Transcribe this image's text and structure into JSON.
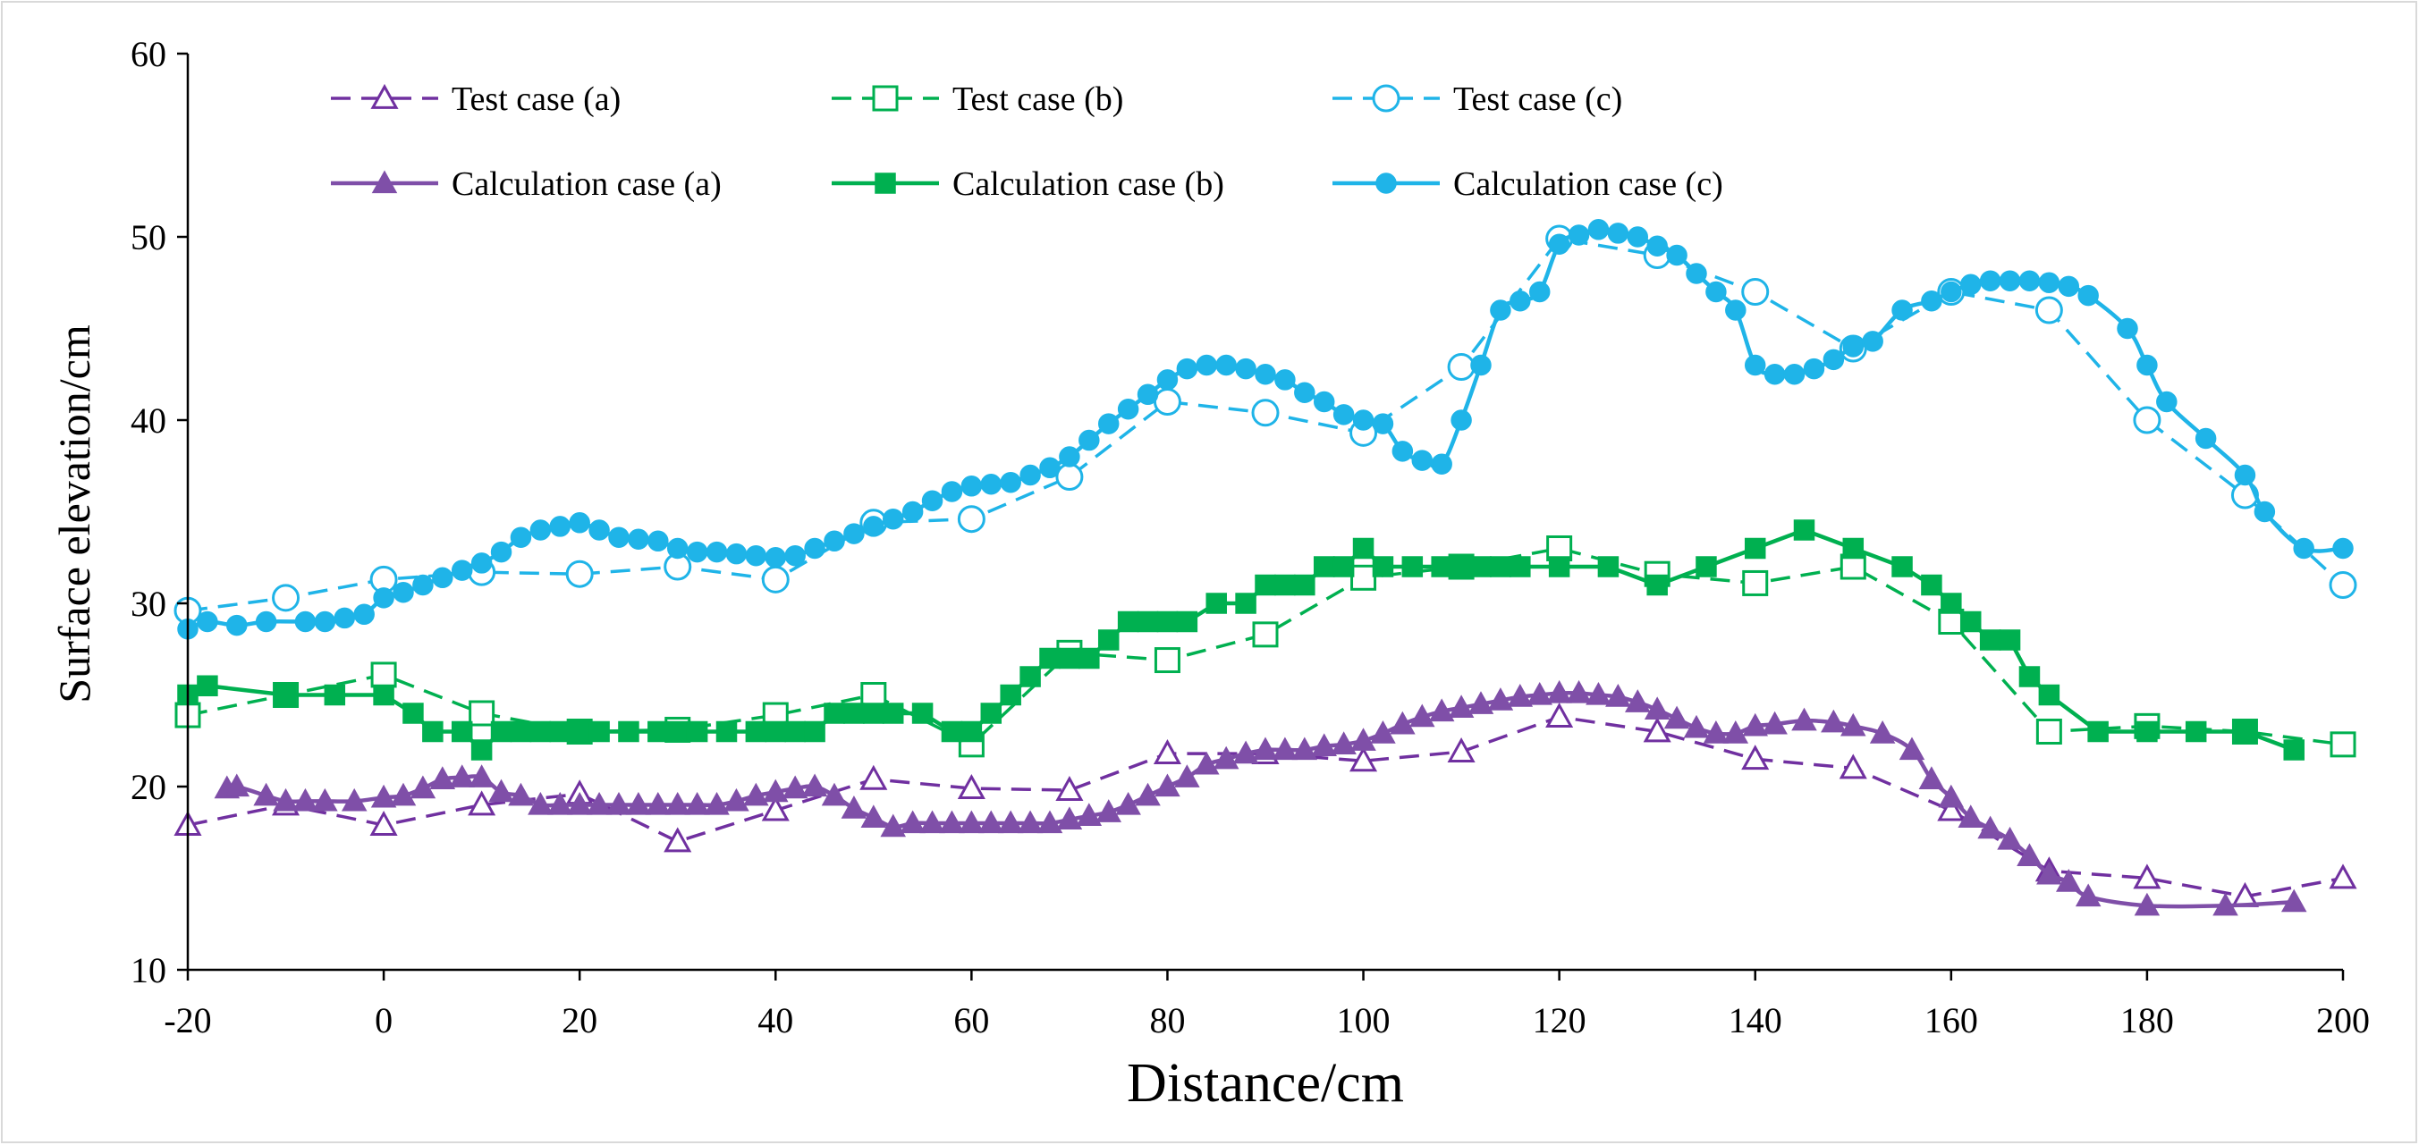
{
  "chart_data": {
    "type": "line",
    "title": "",
    "xlabel": "Distance/cm",
    "ylabel": "Surface elevation/cm",
    "xlim": [
      -20,
      200
    ],
    "ylim": [
      10,
      60
    ],
    "xticks": [
      -20,
      0,
      20,
      40,
      60,
      80,
      100,
      120,
      140,
      160,
      180,
      200
    ],
    "yticks": [
      10,
      20,
      30,
      40,
      50,
      60
    ],
    "grid": false,
    "legend_position": "top",
    "series": [
      {
        "name": "Test case (a)",
        "kind": "test",
        "color": "#7030a0",
        "marker": "triangle-open",
        "dashed": true,
        "smooth": false,
        "x": [
          -20,
          -10,
          0,
          10,
          20,
          30,
          40,
          50,
          60,
          70,
          80,
          90,
          100,
          110,
          120,
          130,
          140,
          150,
          160,
          170,
          180,
          190,
          200
        ],
        "y": [
          17.9,
          19.0,
          17.9,
          19.0,
          19.6,
          17.0,
          18.7,
          20.4,
          19.9,
          19.8,
          21.8,
          21.8,
          21.4,
          21.9,
          23.8,
          23.0,
          21.5,
          21.0,
          18.7,
          15.4,
          15.0,
          14.0,
          15.0
        ]
      },
      {
        "name": "Test case (b)",
        "kind": "test",
        "color": "#00b050",
        "marker": "square-open",
        "dashed": true,
        "smooth": false,
        "x": [
          -20,
          -10,
          0,
          10,
          20,
          30,
          40,
          50,
          60,
          70,
          80,
          90,
          100,
          110,
          120,
          130,
          140,
          150,
          160,
          170,
          180,
          190,
          200
        ],
        "y": [
          23.9,
          25.0,
          26.1,
          24.0,
          23.0,
          23.1,
          23.9,
          25.0,
          22.3,
          27.3,
          26.9,
          28.3,
          31.4,
          32.0,
          33.0,
          31.6,
          31.1,
          32.0,
          29.0,
          23.0,
          23.3,
          23.0,
          22.3
        ]
      },
      {
        "name": "Test case (c)",
        "kind": "test",
        "color": "#1fb4e8",
        "marker": "circle-open",
        "dashed": true,
        "smooth": false,
        "x": [
          -20,
          -10,
          0,
          10,
          20,
          30,
          40,
          50,
          60,
          70,
          80,
          90,
          100,
          110,
          120,
          130,
          140,
          150,
          160,
          170,
          180,
          190,
          200
        ],
        "y": [
          29.6,
          30.3,
          31.3,
          31.7,
          31.6,
          32.0,
          31.3,
          34.4,
          34.6,
          36.9,
          41.0,
          40.4,
          39.3,
          42.9,
          49.9,
          49.0,
          47.0,
          43.9,
          47.0,
          46.0,
          40.0,
          35.9,
          31.0
        ]
      },
      {
        "name": "Calculation case (a)",
        "kind": "calc",
        "color": "#7f4fa8",
        "marker": "triangle-filled",
        "dashed": false,
        "smooth": true,
        "x": [
          -16,
          -15,
          -12,
          -10,
          -8,
          -6,
          -3,
          0,
          2,
          4,
          6,
          8,
          10,
          12,
          14,
          16,
          18,
          20,
          22,
          24,
          26,
          28,
          30,
          32,
          34,
          36,
          38,
          40,
          42,
          44,
          46,
          48,
          50,
          52,
          54,
          56,
          58,
          60,
          62,
          64,
          66,
          68,
          70,
          72,
          74,
          76,
          78,
          80,
          82,
          84,
          86,
          88,
          90,
          92,
          94,
          96,
          98,
          100,
          102,
          104,
          106,
          108,
          110,
          112,
          114,
          116,
          118,
          120,
          122,
          124,
          126,
          128,
          130,
          132,
          134,
          136,
          138,
          140,
          142,
          145,
          148,
          150,
          153,
          156,
          158,
          160,
          162,
          164,
          166,
          168,
          170,
          172,
          174,
          180,
          188,
          195
        ],
        "y": [
          19.9,
          20.0,
          19.5,
          19.2,
          19.2,
          19.2,
          19.2,
          19.4,
          19.5,
          19.9,
          20.4,
          20.5,
          20.5,
          19.7,
          19.5,
          19.0,
          19.0,
          19.0,
          19.0,
          19.0,
          19.0,
          19.0,
          19.0,
          19.0,
          19.0,
          19.2,
          19.5,
          19.7,
          19.9,
          20.0,
          19.5,
          18.8,
          18.3,
          17.8,
          18.0,
          18.0,
          18.0,
          18.0,
          18.0,
          18.0,
          18.0,
          18.0,
          18.2,
          18.4,
          18.6,
          19.0,
          19.5,
          20.0,
          20.5,
          21.2,
          21.5,
          21.8,
          22.0,
          22.0,
          22.0,
          22.2,
          22.3,
          22.5,
          22.9,
          23.4,
          23.8,
          24.1,
          24.3,
          24.5,
          24.7,
          24.9,
          25.0,
          25.1,
          25.1,
          25.0,
          24.9,
          24.6,
          24.2,
          23.7,
          23.2,
          22.9,
          22.9,
          23.3,
          23.4,
          23.6,
          23.5,
          23.3,
          22.9,
          22.0,
          20.4,
          19.4,
          18.3,
          17.7,
          17.1,
          16.2,
          15.2,
          14.8,
          14.0,
          13.5,
          13.5,
          13.7
        ]
      },
      {
        "name": "Calculation case (b)",
        "kind": "calc",
        "color": "#00b050",
        "marker": "square-filled",
        "dashed": false,
        "smooth": false,
        "x": [
          -20,
          -18,
          -10,
          -5,
          0,
          3,
          5,
          8,
          10,
          12,
          14,
          16,
          18,
          20,
          22,
          25,
          28,
          30,
          32,
          35,
          38,
          40,
          42,
          44,
          46,
          48,
          50,
          52,
          55,
          58,
          60,
          62,
          64,
          66,
          68,
          70,
          72,
          74,
          76,
          78,
          80,
          82,
          85,
          88,
          90,
          92,
          94,
          96,
          98,
          100,
          102,
          105,
          108,
          110,
          112,
          114,
          116,
          120,
          125,
          130,
          135,
          140,
          145,
          150,
          155,
          158,
          160,
          162,
          164,
          166,
          168,
          170,
          175,
          180,
          185,
          190,
          195
        ],
        "y": [
          25.0,
          25.5,
          25.0,
          25.0,
          25.0,
          24.0,
          23.0,
          23.0,
          22.0,
          23.0,
          23.0,
          23.0,
          23.0,
          23.0,
          23.0,
          23.0,
          23.0,
          23.0,
          23.0,
          23.0,
          23.0,
          23.0,
          23.0,
          23.0,
          24.0,
          24.0,
          24.0,
          24.0,
          24.0,
          23.0,
          23.0,
          24.0,
          25.0,
          26.0,
          27.0,
          27.0,
          27.0,
          28.0,
          29.0,
          29.0,
          29.0,
          29.0,
          30.0,
          30.0,
          31.0,
          31.0,
          31.0,
          32.0,
          32.0,
          33.0,
          32.0,
          32.0,
          32.0,
          32.0,
          32.0,
          32.0,
          32.0,
          32.0,
          32.0,
          31.0,
          32.0,
          33.0,
          34.0,
          33.0,
          32.0,
          31.0,
          30.0,
          29.0,
          28.0,
          28.0,
          26.0,
          25.0,
          23.0,
          23.0,
          23.0,
          23.0,
          22.0
        ]
      },
      {
        "name": "Calculation case (c)",
        "kind": "calc",
        "color": "#1fb4e8",
        "marker": "circle-filled",
        "dashed": false,
        "smooth": true,
        "x": [
          -20,
          -18,
          -15,
          -12,
          -8,
          -6,
          -4,
          -2,
          0,
          2,
          4,
          6,
          8,
          10,
          12,
          14,
          16,
          18,
          20,
          22,
          24,
          26,
          28,
          30,
          32,
          34,
          36,
          38,
          40,
          42,
          44,
          46,
          48,
          50,
          52,
          54,
          56,
          58,
          60,
          62,
          64,
          66,
          68,
          70,
          72,
          74,
          76,
          78,
          80,
          82,
          84,
          86,
          88,
          90,
          92,
          94,
          96,
          98,
          100,
          102,
          104,
          106,
          108,
          110,
          112,
          114,
          116,
          118,
          120,
          122,
          124,
          126,
          128,
          130,
          132,
          134,
          136,
          138,
          140,
          142,
          144,
          146,
          148,
          150,
          152,
          155,
          158,
          160,
          162,
          164,
          166,
          168,
          170,
          172,
          174,
          178,
          180,
          182,
          186,
          190,
          192,
          196,
          200
        ],
        "y": [
          28.6,
          29.0,
          28.8,
          29.0,
          29.0,
          29.0,
          29.2,
          29.4,
          30.3,
          30.6,
          31.0,
          31.4,
          31.8,
          32.2,
          32.8,
          33.6,
          34.0,
          34.2,
          34.4,
          34.0,
          33.6,
          33.5,
          33.4,
          33.0,
          32.8,
          32.8,
          32.7,
          32.6,
          32.5,
          32.6,
          33.0,
          33.4,
          33.8,
          34.2,
          34.6,
          35.0,
          35.6,
          36.1,
          36.4,
          36.5,
          36.6,
          37.0,
          37.4,
          38.0,
          38.9,
          39.8,
          40.6,
          41.4,
          42.2,
          42.8,
          43.0,
          43.0,
          42.8,
          42.5,
          42.2,
          41.5,
          41.0,
          40.3,
          40.0,
          39.8,
          38.3,
          37.8,
          37.6,
          40.0,
          43.0,
          46.0,
          46.5,
          47.0,
          49.6,
          50.1,
          50.4,
          50.2,
          50.0,
          49.5,
          49.0,
          48.0,
          47.0,
          46.0,
          43.0,
          42.5,
          42.5,
          42.8,
          43.3,
          44.0,
          44.3,
          46.0,
          46.5,
          47.0,
          47.4,
          47.6,
          47.6,
          47.6,
          47.5,
          47.3,
          46.8,
          45.0,
          43.0,
          41.0,
          39.0,
          37.0,
          35.0,
          33.0,
          33.0
        ]
      }
    ]
  },
  "legend_rows": [
    [
      "Test case (a)",
      "Test case (b)",
      "Test case (c)"
    ],
    [
      "Calculation case (a)",
      "Calculation case (b)",
      "Calculation case (c)"
    ]
  ]
}
